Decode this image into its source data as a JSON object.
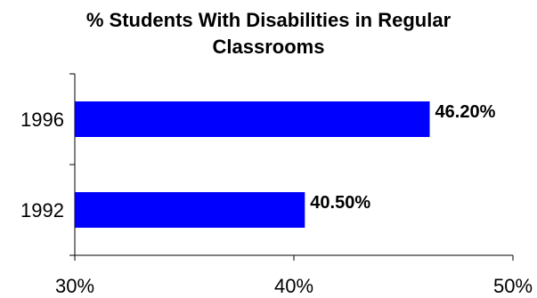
{
  "chart_data": {
    "type": "bar",
    "orientation": "horizontal",
    "title_lines": [
      "% Students With Disabilities in Regular",
      "Classrooms"
    ],
    "categories": [
      "1996",
      "1992"
    ],
    "values": [
      46.2,
      40.5
    ],
    "value_labels": [
      "46.20%",
      "40.50%"
    ],
    "x_ticks": [
      "30%",
      "40%",
      "50%"
    ],
    "x_tick_values": [
      30,
      40,
      50
    ],
    "xlim": [
      30,
      50
    ],
    "bar_color": "#0000FF",
    "grid": false,
    "legend": "none"
  }
}
